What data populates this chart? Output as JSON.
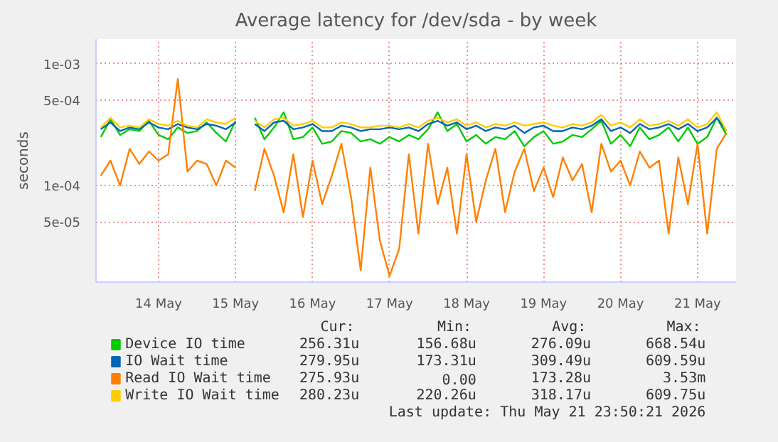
{
  "chart_data": {
    "type": "line",
    "title": "Average latency for /dev/sda - by week",
    "ylabel": "seconds",
    "log": "y",
    "grid": true,
    "legend": "bottom",
    "xlim": [
      "2026-05-13T16:30",
      "2026-05-22T00:00"
    ],
    "xticks": [
      {
        "value": "2026-05-14T12:00",
        "label": "14 May"
      },
      {
        "value": "2026-05-15T12:00",
        "label": "15 May"
      },
      {
        "value": "2026-05-16T12:00",
        "label": "16 May"
      },
      {
        "value": "2026-05-17T12:00",
        "label": "17 May"
      },
      {
        "value": "2026-05-18T12:00",
        "label": "18 May"
      },
      {
        "value": "2026-05-19T12:00",
        "label": "19 May"
      },
      {
        "value": "2026-05-20T12:00",
        "label": "20 May"
      },
      {
        "value": "2026-05-21T12:00",
        "label": "21 May"
      }
    ],
    "ylim": [
      1.6e-05,
      0.0016
    ],
    "yticks": [
      {
        "value": 5e-05,
        "label": "5e-05"
      },
      {
        "value": 0.0001,
        "label": "1e-04"
      },
      {
        "value": 0.0005,
        "label": "5e-04"
      },
      {
        "value": 0.001,
        "label": "1e-03"
      }
    ],
    "x": [
      "2026-05-13T18:00",
      "2026-05-13T21:00",
      "2026-05-14T00:00",
      "2026-05-14T03:00",
      "2026-05-14T06:00",
      "2026-05-14T09:00",
      "2026-05-14T12:00",
      "2026-05-14T15:00",
      "2026-05-14T18:00",
      "2026-05-14T21:00",
      "2026-05-15T00:00",
      "2026-05-15T03:00",
      "2026-05-15T06:00",
      "2026-05-15T09:00",
      "2026-05-15T12:00",
      "2026-05-15T15:00",
      "2026-05-15T18:00",
      "2026-05-15T21:00",
      "2026-05-16T00:00",
      "2026-05-16T03:00",
      "2026-05-16T06:00",
      "2026-05-16T09:00",
      "2026-05-16T12:00",
      "2026-05-16T15:00",
      "2026-05-16T18:00",
      "2026-05-16T21:00",
      "2026-05-17T00:00",
      "2026-05-17T03:00",
      "2026-05-17T06:00",
      "2026-05-17T09:00",
      "2026-05-17T12:00",
      "2026-05-17T15:00",
      "2026-05-17T18:00",
      "2026-05-17T21:00",
      "2026-05-18T00:00",
      "2026-05-18T03:00",
      "2026-05-18T06:00",
      "2026-05-18T09:00",
      "2026-05-18T12:00",
      "2026-05-18T15:00",
      "2026-05-18T18:00",
      "2026-05-18T21:00",
      "2026-05-19T00:00",
      "2026-05-19T03:00",
      "2026-05-19T06:00",
      "2026-05-19T09:00",
      "2026-05-19T12:00",
      "2026-05-19T15:00",
      "2026-05-19T18:00",
      "2026-05-19T21:00",
      "2026-05-20T00:00",
      "2026-05-20T03:00",
      "2026-05-20T06:00",
      "2026-05-20T09:00",
      "2026-05-20T12:00",
      "2026-05-20T15:00",
      "2026-05-20T18:00",
      "2026-05-20T21:00",
      "2026-05-21T00:00",
      "2026-05-21T03:00",
      "2026-05-21T06:00",
      "2026-05-21T09:00",
      "2026-05-21T12:00",
      "2026-05-21T15:00",
      "2026-05-21T18:00",
      "2026-05-21T21:00"
    ],
    "series": [
      {
        "name": "Device IO time",
        "color": "#00cc00",
        "values": [
          0.00025,
          0.00035,
          0.00026,
          0.00029,
          0.00028,
          0.00034,
          0.00026,
          0.00024,
          0.0003,
          0.00027,
          0.00028,
          0.00033,
          0.00027,
          0.00023,
          0.00034,
          null,
          0.00036,
          0.00024,
          0.0003,
          0.0004,
          0.00024,
          0.00025,
          0.0003,
          0.00022,
          0.00023,
          0.00028,
          0.00027,
          0.00023,
          0.00024,
          0.00022,
          0.00025,
          0.00023,
          0.00026,
          0.00024,
          0.00029,
          0.0004,
          0.00028,
          0.00032,
          0.00023,
          0.00026,
          0.00022,
          0.00025,
          0.00024,
          0.00028,
          0.00021,
          0.00025,
          0.00028,
          0.00022,
          0.00023,
          0.00026,
          0.00025,
          0.00029,
          0.00034,
          0.00022,
          0.00026,
          0.00021,
          0.0003,
          0.00024,
          0.00026,
          0.0003,
          0.00023,
          0.0003,
          0.00022,
          0.00025,
          0.00036,
          0.00026
        ]
      },
      {
        "name": "IO Wait time",
        "color": "#0066b3",
        "values": [
          0.00029,
          0.00033,
          0.00028,
          0.0003,
          0.00029,
          0.00033,
          0.0003,
          0.00029,
          0.00032,
          0.0003,
          0.00029,
          0.00032,
          0.00031,
          0.00029,
          0.00033,
          null,
          0.00032,
          0.00028,
          0.00033,
          0.00034,
          0.00029,
          0.0003,
          0.00032,
          0.00028,
          0.00028,
          0.00031,
          0.0003,
          0.00028,
          0.00029,
          0.00029,
          0.0003,
          0.00029,
          0.0003,
          0.00028,
          0.00032,
          0.00034,
          0.00031,
          0.00033,
          0.00029,
          0.00031,
          0.00028,
          0.0003,
          0.00029,
          0.00031,
          0.00027,
          0.0003,
          0.00031,
          0.00028,
          0.00028,
          0.0003,
          0.00029,
          0.00031,
          0.00035,
          0.00028,
          0.0003,
          0.00027,
          0.00032,
          0.00029,
          0.0003,
          0.00032,
          0.00029,
          0.00032,
          0.00028,
          0.0003,
          0.00036,
          0.00028
        ]
      },
      {
        "name": "Read IO Wait time",
        "color": "#ff8000",
        "values": [
          0.00012,
          0.00016,
          0.0001,
          0.0002,
          0.00015,
          0.00019,
          0.00016,
          0.00018,
          0.00075,
          0.00013,
          0.00016,
          0.00015,
          0.0001,
          0.00016,
          0.00014,
          null,
          9e-05,
          0.0002,
          0.00012,
          6e-05,
          0.00018,
          5.5e-05,
          0.00016,
          7e-05,
          0.00012,
          0.00022,
          8e-05,
          2e-05,
          0.00014,
          3.5e-05,
          1.8e-05,
          3e-05,
          0.00018,
          4e-05,
          0.00022,
          7e-05,
          0.00014,
          4e-05,
          0.00018,
          5e-05,
          0.00011,
          0.0002,
          6e-05,
          0.00013,
          0.0002,
          9e-05,
          0.00014,
          8e-05,
          0.00017,
          0.00011,
          0.00015,
          6e-05,
          0.00022,
          0.00013,
          0.00016,
          0.0001,
          0.00019,
          0.00014,
          0.00016,
          4e-05,
          0.00017,
          7e-05,
          0.00022,
          4e-05,
          0.0002,
          0.00027
        ]
      },
      {
        "name": "Write IO Wait time",
        "color": "#ffcc00",
        "values": [
          0.0003,
          0.00036,
          0.0003,
          0.00031,
          0.0003,
          0.00035,
          0.00032,
          0.00031,
          0.00034,
          0.00031,
          0.0003,
          0.00035,
          0.00033,
          0.00032,
          0.00036,
          null,
          0.00034,
          0.0003,
          0.00035,
          0.00036,
          0.00031,
          0.00032,
          0.00034,
          0.0003,
          0.0003,
          0.00033,
          0.00032,
          0.0003,
          0.0003,
          0.00031,
          0.00031,
          0.0003,
          0.00032,
          0.0003,
          0.00034,
          0.00036,
          0.00033,
          0.00035,
          0.00031,
          0.00033,
          0.0003,
          0.00032,
          0.00031,
          0.00033,
          0.00031,
          0.00032,
          0.00033,
          0.00031,
          0.0003,
          0.00032,
          0.00031,
          0.00033,
          0.00038,
          0.00031,
          0.00033,
          0.0003,
          0.00035,
          0.00031,
          0.00032,
          0.00034,
          0.00031,
          0.00035,
          0.0003,
          0.00032,
          0.0004,
          0.00028
        ]
      }
    ],
    "annotations": [
      "Cur:",
      "Min:",
      "Avg:",
      "Max:",
      "256.31u",
      "156.68u",
      "276.09u",
      "668.54u",
      "279.95u",
      "173.31u",
      "309.49u",
      "609.59u",
      "275.93u",
      "0.00",
      "173.28u",
      "3.53m",
      "280.23u",
      "220.26u",
      "318.17u",
      "609.75u",
      "Last update: Thu May 21 23:50:21 2026"
    ]
  }
}
